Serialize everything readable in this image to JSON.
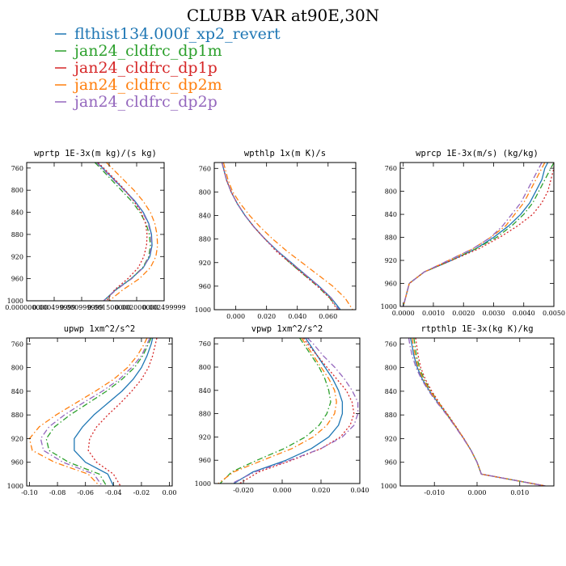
{
  "figure": {
    "title": "CLUBB VAR at90E,30N"
  },
  "legend": [
    {
      "name": "flthist134.000f_xp2_revert",
      "color": "#1f77b4",
      "dash": "solid"
    },
    {
      "name": "jan24_cldfrc_dp1m",
      "color": "#2ca02c",
      "dash": "dashdot"
    },
    {
      "name": "jan24_cldfrc_dp1p",
      "color": "#d62728",
      "dash": "dotted"
    },
    {
      "name": "jan24_cldfrc_dp2m",
      "color": "#ff7f0e",
      "dash": "dashdot"
    },
    {
      "name": "jan24_cldfrc_dp2p",
      "color": "#9467bd",
      "dash": "dashdot"
    }
  ],
  "chart_data": [
    {
      "type": "line",
      "title": "wprtp  1E-3x(m kg)/(s kg)",
      "xlim": [
        0.0,
        0.0025
      ],
      "ylim": [
        1000,
        750
      ],
      "xticks": [
        0.0,
        0.0005,
        0.001,
        0.0015,
        0.002,
        0.0025
      ],
      "xtick_labels": [
        "0.000000000",
        "0.000499999",
        "0.000999999",
        "0.001500000",
        "0.002000000",
        "0.002499999"
      ],
      "yticks": [
        760,
        800,
        840,
        880,
        920,
        960,
        1000
      ],
      "y": [
        750,
        760,
        780,
        800,
        820,
        840,
        860,
        880,
        900,
        920,
        940,
        960,
        980,
        1000
      ],
      "series": [
        {
          "values": [
            0.00128,
            0.00138,
            0.00158,
            0.00178,
            0.00197,
            0.00212,
            0.00222,
            0.00227,
            0.00228,
            0.00224,
            0.00212,
            0.0019,
            0.00162,
            0.0014
          ]
        },
        {
          "values": [
            0.00124,
            0.00134,
            0.00153,
            0.00172,
            0.00191,
            0.00206,
            0.00217,
            0.00223,
            0.00225,
            0.00222,
            0.00211,
            0.0019,
            0.00163,
            0.0014
          ]
        },
        {
          "values": [
            0.0013,
            0.0014,
            0.0016,
            0.00179,
            0.00195,
            0.00208,
            0.00216,
            0.00219,
            0.00218,
            0.00213,
            0.00203,
            0.00184,
            0.0016,
            0.00145
          ]
        },
        {
          "values": [
            0.00145,
            0.00155,
            0.00175,
            0.00195,
            0.00212,
            0.00225,
            0.00233,
            0.00237,
            0.00238,
            0.00235,
            0.00225,
            0.00205,
            0.00175,
            0.0015
          ]
        },
        {
          "values": [
            0.00127,
            0.00137,
            0.00157,
            0.00177,
            0.00196,
            0.00211,
            0.00221,
            0.00226,
            0.00227,
            0.00223,
            0.00212,
            0.00191,
            0.00163,
            0.0014
          ]
        }
      ]
    },
    {
      "type": "line",
      "title": "wpthlp  1x(m K)/s",
      "xlim": [
        -0.014,
        0.078
      ],
      "ylim": [
        1000,
        750
      ],
      "xticks": [
        0.0,
        0.02,
        0.04,
        0.06
      ],
      "xtick_labels": [
        "0.000",
        "0.020",
        "0.040",
        "0.060"
      ],
      "yticks": [
        760,
        800,
        840,
        880,
        920,
        960,
        1000
      ],
      "y": [
        750,
        760,
        780,
        800,
        820,
        840,
        860,
        880,
        900,
        920,
        940,
        960,
        980,
        1000
      ],
      "series": [
        {
          "values": [
            -0.009,
            -0.008,
            -0.006,
            -0.003,
            0.001,
            0.006,
            0.012,
            0.019,
            0.027,
            0.036,
            0.045,
            0.054,
            0.062,
            0.068
          ]
        },
        {
          "values": [
            -0.009,
            -0.008,
            -0.006,
            -0.003,
            0.001,
            0.006,
            0.012,
            0.019,
            0.027,
            0.035,
            0.044,
            0.053,
            0.061,
            0.067
          ]
        },
        {
          "values": [
            -0.009,
            -0.008,
            -0.006,
            -0.003,
            0.001,
            0.006,
            0.012,
            0.019,
            0.026,
            0.035,
            0.044,
            0.053,
            0.061,
            0.066
          ]
        },
        {
          "values": [
            -0.008,
            -0.007,
            -0.005,
            -0.002,
            0.003,
            0.009,
            0.016,
            0.024,
            0.033,
            0.043,
            0.053,
            0.063,
            0.071,
            0.076
          ]
        },
        {
          "values": [
            -0.009,
            -0.008,
            -0.006,
            -0.003,
            0.001,
            0.006,
            0.012,
            0.019,
            0.027,
            0.036,
            0.045,
            0.054,
            0.062,
            0.067
          ]
        }
      ]
    },
    {
      "type": "line",
      "title": "wprcp  1E-3x(m/s) (kg/kg)",
      "xlim": [
        -0.0001,
        0.005
      ],
      "ylim": [
        1000,
        750
      ],
      "xticks": [
        0.0,
        0.001,
        0.002,
        0.003,
        0.004,
        0.005
      ],
      "xtick_labels": [
        "0.0000",
        "0.0010",
        "0.0020",
        "0.0030",
        "0.0040",
        "0.0050"
      ],
      "yticks": [
        760,
        800,
        840,
        880,
        920,
        960,
        1000
      ],
      "y": [
        750,
        760,
        780,
        800,
        820,
        840,
        860,
        880,
        900,
        920,
        940,
        960,
        980,
        1000
      ],
      "series": [
        {
          "values": [
            0.0048,
            0.0047,
            0.0046,
            0.0044,
            0.0042,
            0.0039,
            0.0035,
            0.003,
            0.0024,
            0.0016,
            0.0007,
            0.0002,
            0.0001,
            0.0
          ]
        },
        {
          "values": [
            0.005,
            0.0049,
            0.0047,
            0.0045,
            0.0043,
            0.004,
            0.0036,
            0.0031,
            0.0024,
            0.0016,
            0.0007,
            0.0002,
            0.0001,
            0.0
          ]
        },
        {
          "values": [
            0.005,
            0.005,
            0.0049,
            0.0048,
            0.0046,
            0.0043,
            0.0038,
            0.0032,
            0.0025,
            0.0016,
            0.0007,
            0.0002,
            0.0001,
            0.0
          ]
        },
        {
          "values": [
            0.0047,
            0.0046,
            0.0044,
            0.0042,
            0.004,
            0.0037,
            0.0034,
            0.0029,
            0.0023,
            0.0015,
            0.0007,
            0.0002,
            0.0001,
            0.0
          ]
        },
        {
          "values": [
            0.0046,
            0.0045,
            0.0043,
            0.0041,
            0.0039,
            0.0036,
            0.0033,
            0.0029,
            0.0023,
            0.0015,
            0.0007,
            0.0002,
            0.0001,
            0.0
          ]
        }
      ]
    },
    {
      "type": "line",
      "title": "upwp  1xm^2/s^2",
      "xlim": [
        -0.102,
        0.002
      ],
      "ylim": [
        1000,
        750
      ],
      "xticks": [
        -0.1,
        -0.08,
        -0.06,
        -0.04,
        -0.02,
        0.0
      ],
      "xtick_labels": [
        "-0.10",
        "-0.08",
        "-0.06",
        "-0.04",
        "-0.02",
        "0.00"
      ],
      "yticks": [
        760,
        800,
        840,
        880,
        920,
        960,
        1000
      ],
      "y": [
        750,
        760,
        780,
        800,
        820,
        840,
        860,
        880,
        900,
        920,
        940,
        960,
        980,
        1000
      ],
      "series": [
        {
          "values": [
            -0.012,
            -0.013,
            -0.016,
            -0.02,
            -0.026,
            -0.034,
            -0.044,
            -0.054,
            -0.062,
            -0.068,
            -0.068,
            -0.06,
            -0.044,
            -0.04
          ]
        },
        {
          "values": [
            -0.013,
            -0.015,
            -0.019,
            -0.025,
            -0.034,
            -0.045,
            -0.058,
            -0.071,
            -0.082,
            -0.088,
            -0.086,
            -0.072,
            -0.05,
            -0.045
          ]
        },
        {
          "values": [
            -0.009,
            -0.01,
            -0.012,
            -0.015,
            -0.02,
            -0.027,
            -0.035,
            -0.044,
            -0.052,
            -0.057,
            -0.058,
            -0.052,
            -0.04,
            -0.035
          ]
        },
        {
          "values": [
            -0.016,
            -0.018,
            -0.023,
            -0.03,
            -0.04,
            -0.053,
            -0.067,
            -0.081,
            -0.093,
            -0.1,
            -0.098,
            -0.082,
            -0.058,
            -0.05
          ]
        },
        {
          "values": [
            -0.014,
            -0.016,
            -0.02,
            -0.027,
            -0.036,
            -0.048,
            -0.062,
            -0.075,
            -0.086,
            -0.092,
            -0.09,
            -0.076,
            -0.054,
            -0.048
          ]
        }
      ]
    },
    {
      "type": "line",
      "title": "vpwp  1xm^2/s^2",
      "xlim": [
        -0.035,
        0.04
      ],
      "ylim": [
        1000,
        750
      ],
      "xticks": [
        -0.02,
        0.0,
        0.02,
        0.04
      ],
      "xtick_labels": [
        "-0.020",
        "0.000",
        "0.020",
        "0.040"
      ],
      "yticks": [
        760,
        800,
        840,
        880,
        920,
        960,
        1000
      ],
      "y": [
        750,
        760,
        780,
        800,
        820,
        840,
        860,
        880,
        900,
        920,
        940,
        960,
        980,
        1000
      ],
      "series": [
        {
          "values": [
            0.012,
            0.014,
            0.018,
            0.022,
            0.026,
            0.029,
            0.031,
            0.031,
            0.029,
            0.024,
            0.015,
            0.002,
            -0.015,
            -0.025
          ]
        },
        {
          "values": [
            0.009,
            0.011,
            0.015,
            0.019,
            0.022,
            0.024,
            0.025,
            0.023,
            0.019,
            0.012,
            0.001,
            -0.013,
            -0.026,
            -0.032
          ]
        },
        {
          "values": [
            0.011,
            0.013,
            0.018,
            0.023,
            0.028,
            0.033,
            0.036,
            0.037,
            0.035,
            0.03,
            0.02,
            0.005,
            -0.012,
            -0.022
          ]
        },
        {
          "values": [
            0.01,
            0.012,
            0.016,
            0.02,
            0.024,
            0.027,
            0.028,
            0.027,
            0.023,
            0.016,
            0.005,
            -0.01,
            -0.025,
            -0.033
          ]
        },
        {
          "values": [
            0.013,
            0.016,
            0.021,
            0.027,
            0.032,
            0.036,
            0.039,
            0.039,
            0.037,
            0.031,
            0.02,
            0.004,
            -0.014,
            -0.026
          ]
        }
      ]
    },
    {
      "type": "line",
      "title": "rtpthlp  1E-3x(kg K)/kg",
      "xlim": [
        -0.018,
        0.018
      ],
      "ylim": [
        1000,
        750
      ],
      "xticks": [
        -0.01,
        0.0,
        0.01
      ],
      "xtick_labels": [
        "-0.010",
        "0.000",
        "0.010"
      ],
      "yticks": [
        760,
        800,
        840,
        880,
        920,
        960,
        1000
      ],
      "y": [
        750,
        760,
        780,
        800,
        820,
        840,
        860,
        880,
        900,
        920,
        940,
        960,
        980,
        1000
      ],
      "series": [
        {
          "values": [
            -0.0156,
            -0.0153,
            -0.0148,
            -0.014,
            -0.0128,
            -0.0111,
            -0.0091,
            -0.007,
            -0.005,
            -0.0031,
            -0.0014,
            0.0,
            0.001,
            0.016
          ]
        },
        {
          "values": [
            -0.0148,
            -0.0146,
            -0.0142,
            -0.0135,
            -0.0124,
            -0.0108,
            -0.0089,
            -0.0069,
            -0.005,
            -0.0031,
            -0.0014,
            0.0,
            0.001,
            0.016
          ]
        },
        {
          "values": [
            -0.0144,
            -0.0142,
            -0.0138,
            -0.0132,
            -0.0121,
            -0.0106,
            -0.0088,
            -0.0068,
            -0.0049,
            -0.0031,
            -0.0014,
            0.0,
            0.001,
            0.016
          ]
        },
        {
          "values": [
            -0.0152,
            -0.015,
            -0.0145,
            -0.0138,
            -0.0126,
            -0.011,
            -0.009,
            -0.007,
            -0.005,
            -0.0031,
            -0.0014,
            0.0,
            0.001,
            0.016
          ]
        },
        {
          "values": [
            -0.016,
            -0.0158,
            -0.0152,
            -0.0143,
            -0.013,
            -0.0113,
            -0.0093,
            -0.0071,
            -0.0051,
            -0.0032,
            -0.0014,
            0.0,
            0.001,
            0.016
          ]
        }
      ]
    }
  ]
}
